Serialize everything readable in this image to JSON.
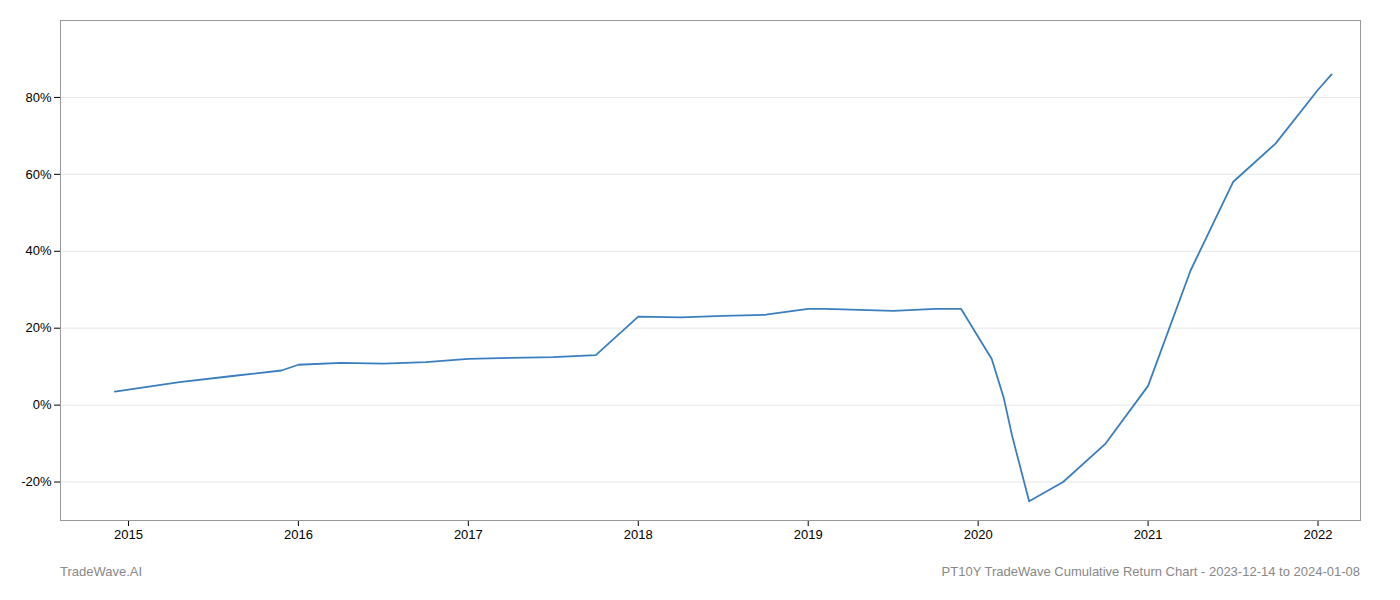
{
  "chart_data": {
    "type": "line",
    "x": [
      2014.92,
      2015.0,
      2015.3,
      2015.6,
      2015.9,
      2016.0,
      2016.25,
      2016.5,
      2016.75,
      2017.0,
      2017.25,
      2017.5,
      2017.75,
      2018.0,
      2018.25,
      2018.5,
      2018.75,
      2019.0,
      2019.1,
      2019.5,
      2019.75,
      2019.9,
      2020.08,
      2020.15,
      2020.2,
      2020.3,
      2020.5,
      2020.75,
      2021.0,
      2021.25,
      2021.5,
      2021.75,
      2022.0,
      2022.08
    ],
    "values": [
      3.5,
      4.0,
      6.0,
      7.5,
      9.0,
      10.5,
      11.0,
      10.8,
      11.2,
      12.0,
      12.3,
      12.5,
      13.0,
      23.0,
      22.8,
      23.2,
      23.5,
      25.0,
      25.0,
      24.5,
      25.0,
      25.0,
      12.0,
      2.0,
      -8.0,
      -25.0,
      -20.0,
      -10.0,
      5.0,
      35.0,
      58.0,
      68.0,
      82.0,
      86.0
    ],
    "color": "#3a7ebf",
    "xlim": [
      2014.6,
      2022.25
    ],
    "xticks": [
      2015,
      2016,
      2017,
      2018,
      2019,
      2020,
      2021,
      2022
    ],
    "ylim": [
      -30,
      100
    ],
    "yticks": [
      {
        "value": -20,
        "label": "-20%"
      },
      {
        "value": 0,
        "label": "0%"
      },
      {
        "value": 20,
        "label": "20%"
      },
      {
        "value": 40,
        "label": "40%"
      },
      {
        "value": 60,
        "label": "60%"
      },
      {
        "value": 80,
        "label": "80%"
      }
    ],
    "grid": "y",
    "annotations": [
      "TradeWave.AI",
      "PT10Y TradeWave Cumulative Return Chart - 2023-12-14 to 2024-01-08"
    ]
  }
}
